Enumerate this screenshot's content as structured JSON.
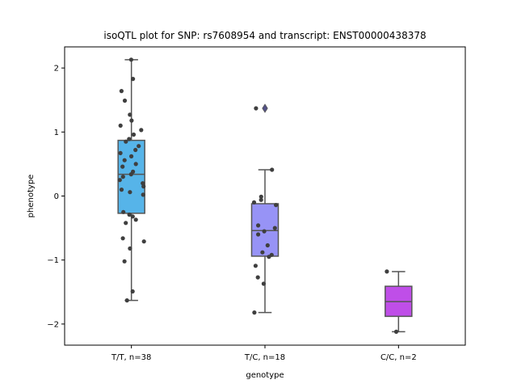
{
  "chart_data": {
    "type": "box",
    "title": "isoQTL plot for SNP: rs7608954 and transcript: ENST00000438378",
    "xlabel": "genotype",
    "ylabel": "phenotype",
    "ylim": [
      -2.33,
      2.33
    ],
    "yticks": [
      2,
      1,
      0,
      -1,
      -2
    ],
    "ytick_labels": [
      "2",
      "1",
      "0",
      "−1",
      "−2"
    ],
    "categories": [
      "T/T, n=38",
      "T/C, n=18",
      "C/C, n=2"
    ],
    "colors": [
      "#56b4e9",
      "#9793f6",
      "#bf4ee8"
    ],
    "boxes": [
      {
        "category": "T/T, n=38",
        "whisker_low": -1.63,
        "q1": -0.27,
        "median": 0.34,
        "q3": 0.87,
        "whisker_high": 2.13,
        "outliers": [],
        "points": [
          2.13,
          1.83,
          1.64,
          1.49,
          1.27,
          1.18,
          1.1,
          1.03,
          0.96,
          0.89,
          0.85,
          0.78,
          0.72,
          0.67,
          0.62,
          0.56,
          0.5,
          0.46,
          0.38,
          0.34,
          0.3,
          0.25,
          0.2,
          0.15,
          0.1,
          0.06,
          0.02,
          -0.25,
          -0.29,
          -0.32,
          -0.37,
          -0.42,
          -0.66,
          -0.71,
          -0.82,
          -1.02,
          -1.49,
          -1.63
        ]
      },
      {
        "category": "T/C, n=18",
        "whisker_low": -1.82,
        "q1": -0.94,
        "median": -0.54,
        "q3": -0.12,
        "whisker_high": 0.41,
        "outliers": [
          1.37
        ],
        "points": [
          1.37,
          0.41,
          -0.01,
          -0.06,
          -0.1,
          -0.14,
          -0.46,
          -0.5,
          -0.55,
          -0.6,
          -0.77,
          -0.88,
          -0.92,
          -0.95,
          -1.09,
          -1.27,
          -1.37,
          -1.82
        ]
      },
      {
        "category": "C/C, n=2",
        "whisker_low": -2.12,
        "q1": -1.88,
        "median": -1.65,
        "q3": -1.41,
        "whisker_high": -1.18,
        "outliers": [],
        "points": [
          -1.18,
          -2.12
        ]
      }
    ]
  }
}
